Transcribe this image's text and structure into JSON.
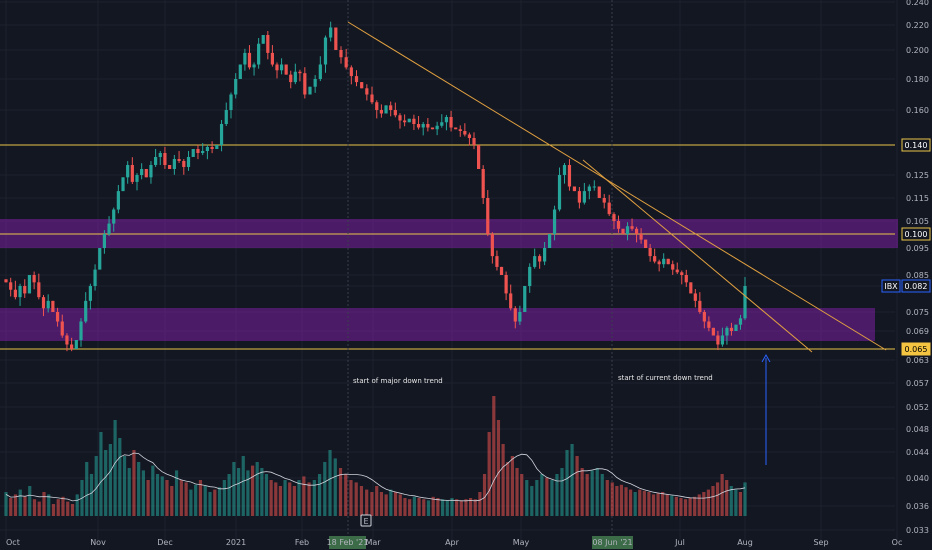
{
  "chart_data": {
    "type": "candlestick",
    "ticker": "IBX",
    "last_price": "0.082",
    "price_axis_ticks": [
      "0.240",
      "0.220",
      "0.200",
      "0.180",
      "0.160",
      "0.140",
      "0.125",
      "0.115",
      "0.105",
      "0.100",
      "0.095",
      "0.085",
      "0.082",
      "0.075",
      "0.069",
      "0.065",
      "0.063",
      "0.057",
      "0.052",
      "0.048",
      "0.044",
      "0.040",
      "0.036",
      "0.033"
    ],
    "price_labels": [
      {
        "value": "0.140",
        "style": "level"
      },
      {
        "value": "0.100",
        "style": "level"
      },
      {
        "value": "0.082",
        "style": "ticker"
      },
      {
        "value": "0.065",
        "style": "level"
      }
    ],
    "x_labels": [
      "Oct",
      "Nov",
      "Dec",
      "2021",
      "Feb",
      "Mar",
      "Apr",
      "May",
      "Jul",
      "Aug",
      "Sep",
      "Oc"
    ],
    "x_highlights": [
      "18 Feb '21",
      "08 Jun '21"
    ],
    "annotations": [
      "start of major down trend",
      "start of current down trend"
    ],
    "horizontal_levels": [
      0.14,
      0.1,
      0.065
    ],
    "zones": [
      {
        "from": 0.095,
        "to": 0.105,
        "color": "#7b1fa2"
      },
      {
        "from": 0.069,
        "to": 0.076,
        "color": "#7b1fa2"
      }
    ],
    "trendlines": [
      {
        "from": {
          "date": "18 Feb '21",
          "price": 0.22
        },
        "to": {
          "date": "Oct",
          "price": 0.065
        }
      },
      {
        "from": {
          "date": "08 Jun '21",
          "price": 0.13
        },
        "to": {
          "date": "Oct",
          "price": 0.065
        }
      }
    ],
    "event_marker": "E",
    "price_path": [
      0.083,
      0.081,
      0.079,
      0.082,
      0.08,
      0.085,
      0.083,
      0.079,
      0.076,
      0.078,
      0.075,
      0.072,
      0.068,
      0.066,
      0.065,
      0.067,
      0.072,
      0.078,
      0.082,
      0.087,
      0.095,
      0.1,
      0.104,
      0.11,
      0.118,
      0.124,
      0.13,
      0.122,
      0.125,
      0.128,
      0.124,
      0.13,
      0.134,
      0.136,
      0.13,
      0.128,
      0.133,
      0.132,
      0.129,
      0.134,
      0.138,
      0.136,
      0.137,
      0.139,
      0.138,
      0.14,
      0.152,
      0.16,
      0.17,
      0.18,
      0.19,
      0.198,
      0.188,
      0.19,
      0.205,
      0.212,
      0.198,
      0.19,
      0.186,
      0.19,
      0.183,
      0.178,
      0.185,
      0.184,
      0.17,
      0.175,
      0.18,
      0.19,
      0.21,
      0.218,
      0.2,
      0.195,
      0.188,
      0.182,
      0.178,
      0.174,
      0.17,
      0.165,
      0.16,
      0.158,
      0.163,
      0.16,
      0.157,
      0.154,
      0.153,
      0.155,
      0.152,
      0.15,
      0.152,
      0.15,
      0.149,
      0.151,
      0.153,
      0.156,
      0.15,
      0.149,
      0.148,
      0.146,
      0.144,
      0.14,
      0.128,
      0.115,
      0.1,
      0.092,
      0.088,
      0.085,
      0.08,
      0.076,
      0.072,
      0.075,
      0.082,
      0.088,
      0.092,
      0.09,
      0.095,
      0.1,
      0.11,
      0.125,
      0.13,
      0.12,
      0.118,
      0.113,
      0.118,
      0.12,
      0.12,
      0.115,
      0.113,
      0.108,
      0.105,
      0.102,
      0.1,
      0.103,
      0.102,
      0.1,
      0.098,
      0.095,
      0.092,
      0.09,
      0.089,
      0.091,
      0.089,
      0.087,
      0.086,
      0.085,
      0.083,
      0.08,
      0.078,
      0.075,
      0.072,
      0.07,
      0.068,
      0.066,
      0.068,
      0.07,
      0.069,
      0.071,
      0.073,
      0.082
    ],
    "volume_path": [
      0.2,
      0.15,
      0.18,
      0.22,
      0.16,
      0.25,
      0.14,
      0.12,
      0.2,
      0.18,
      0.1,
      0.14,
      0.16,
      0.12,
      0.1,
      0.18,
      0.3,
      0.45,
      0.35,
      0.5,
      0.7,
      0.55,
      0.6,
      0.8,
      0.65,
      0.5,
      0.4,
      0.55,
      0.45,
      0.38,
      0.3,
      0.42,
      0.35,
      0.33,
      0.3,
      0.25,
      0.38,
      0.3,
      0.28,
      0.22,
      0.26,
      0.3,
      0.25,
      0.2,
      0.22,
      0.24,
      0.3,
      0.35,
      0.45,
      0.4,
      0.5,
      0.38,
      0.42,
      0.45,
      0.4,
      0.35,
      0.3,
      0.28,
      0.25,
      0.3,
      0.28,
      0.25,
      0.3,
      0.33,
      0.28,
      0.3,
      0.35,
      0.45,
      0.55,
      0.48,
      0.4,
      0.35,
      0.3,
      0.28,
      0.25,
      0.22,
      0.2,
      0.25,
      0.2,
      0.18,
      0.22,
      0.2,
      0.18,
      0.15,
      0.14,
      0.16,
      0.15,
      0.14,
      0.13,
      0.16,
      0.15,
      0.14,
      0.13,
      0.15,
      0.14,
      0.13,
      0.14,
      0.15,
      0.14,
      0.2,
      0.35,
      0.7,
      1.0,
      0.8,
      0.6,
      0.45,
      0.5,
      0.4,
      0.35,
      0.3,
      0.25,
      0.3,
      0.35,
      0.32,
      0.3,
      0.35,
      0.4,
      0.55,
      0.6,
      0.5,
      0.4,
      0.35,
      0.38,
      0.4,
      0.35,
      0.3,
      0.28,
      0.25,
      0.26,
      0.24,
      0.22,
      0.2,
      0.22,
      0.21,
      0.2,
      0.18,
      0.19,
      0.2,
      0.18,
      0.17,
      0.16,
      0.15,
      0.14,
      0.15,
      0.16,
      0.18,
      0.2,
      0.22,
      0.25,
      0.28,
      0.35,
      0.3,
      0.25,
      0.22,
      0.2,
      0.28
    ]
  }
}
